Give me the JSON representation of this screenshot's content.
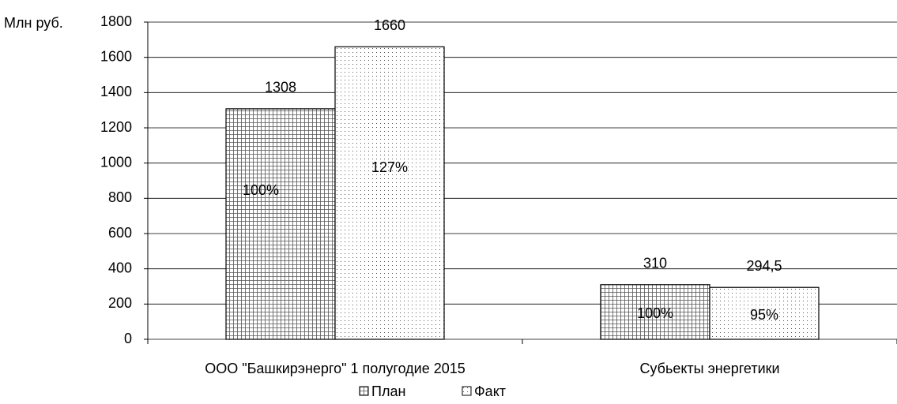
{
  "chart_data": {
    "type": "bar",
    "y_label": "Млн руб.",
    "categories": [
      "ООО \"Башкирэнерго\" 1 полугодие 2015",
      "Субьекты энергетики"
    ],
    "series": [
      {
        "name": "План",
        "color": "#000000",
        "pattern": "grid",
        "values": [
          1308,
          310
        ],
        "value_labels": [
          "1308",
          "310"
        ],
        "inner_labels": [
          "100%",
          "100%"
        ]
      },
      {
        "name": "Факт",
        "color": "#000000",
        "pattern": "dots",
        "values": [
          1660,
          294.5
        ],
        "value_labels": [
          "1660",
          "294,5"
        ],
        "inner_labels": [
          "127%",
          "95%"
        ]
      }
    ],
    "ylim": [
      0,
      1800
    ],
    "yticks": [
      0,
      200,
      400,
      600,
      800,
      1000,
      1200,
      1400,
      1600,
      1800
    ],
    "grid": true,
    "legend": "bottom"
  }
}
